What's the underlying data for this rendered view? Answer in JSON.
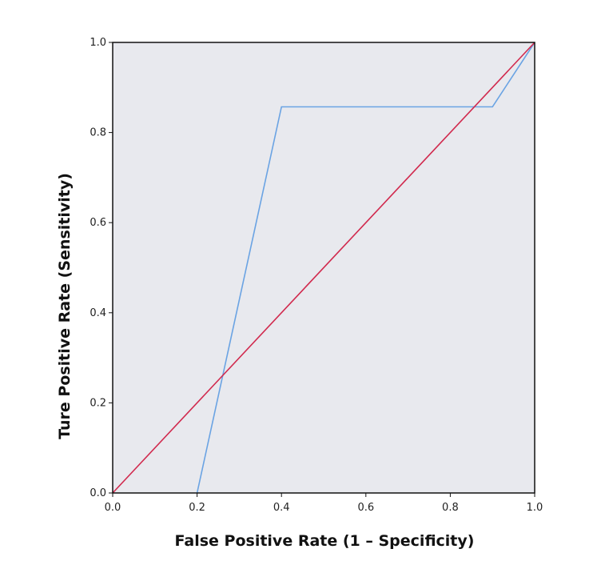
{
  "chart_data": {
    "type": "line",
    "title": "",
    "xlabel": "False Positive Rate (1 – Specificity)",
    "ylabel": "Ture Positive Rate (Sensitivity)",
    "xlim": [
      0,
      1
    ],
    "ylim": [
      0,
      1
    ],
    "x_ticks": [
      "0.0",
      "0.2",
      "0.4",
      "0.6",
      "0.8",
      "1.0"
    ],
    "y_ticks": [
      "0.0",
      "0.2",
      "0.4",
      "0.6",
      "0.8",
      "1.0"
    ],
    "grid": false,
    "legend": "none",
    "background_color": "#e8e9ee",
    "series": [
      {
        "x": [
          0.2,
          0.4,
          0.9,
          1.0
        ],
        "y": [
          0.0,
          0.857,
          0.857,
          1.0
        ],
        "color": "#6aa3e3"
      },
      {
        "x": [
          0.0,
          1.0
        ],
        "y": [
          0.0,
          1.0
        ],
        "color": "#d1294d"
      }
    ]
  }
}
